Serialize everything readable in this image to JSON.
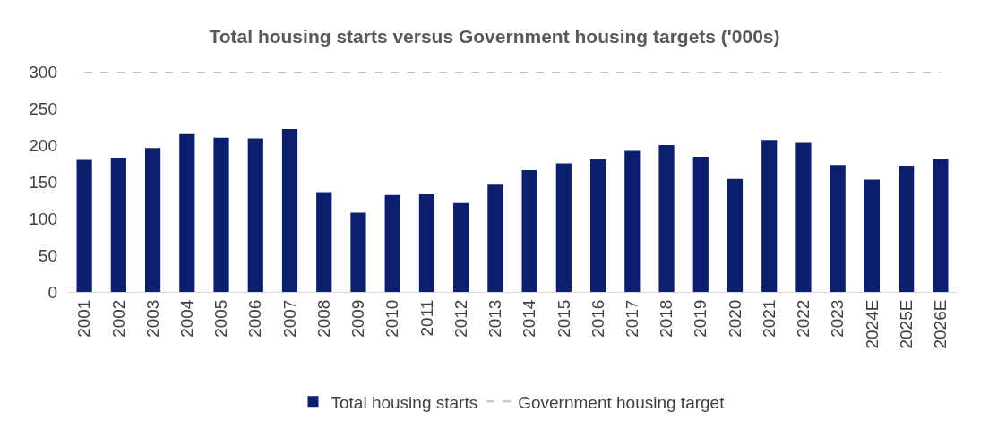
{
  "chart_data": {
    "type": "bar",
    "title": "Total housing starts versus Government housing targets ('000s)",
    "categories": [
      "2001",
      "2002",
      "2003",
      "2004",
      "2005",
      "2006",
      "2007",
      "2008",
      "2009",
      "2010",
      "2011",
      "2012",
      "2013",
      "2014",
      "2015",
      "2016",
      "2017",
      "2018",
      "2019",
      "2020",
      "2021",
      "2022",
      "2023",
      "2024E",
      "2025E",
      "2026E"
    ],
    "series": [
      {
        "name": "Total housing starts",
        "color": "#0c1f6e",
        "values": [
          180,
          183,
          196,
          215,
          210,
          209,
          222,
          136,
          108,
          132,
          133,
          121,
          146,
          166,
          175,
          181,
          192,
          200,
          184,
          154,
          207,
          203,
          173,
          153,
          172,
          181
        ]
      }
    ],
    "ylim": [
      0,
      300
    ],
    "yticks": [
      0,
      50,
      100,
      150,
      200,
      250,
      300
    ],
    "ref_lines": [
      {
        "axis": "y",
        "value": 300,
        "label": "Government housing target",
        "color": "#bfbfbf",
        "line_style": "dashed"
      }
    ],
    "grid": false,
    "legend": "bottom"
  }
}
